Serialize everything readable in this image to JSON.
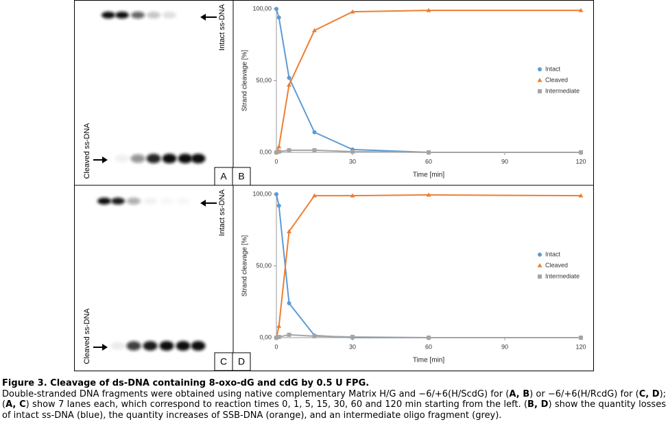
{
  "panels": [
    "A",
    "B",
    "C",
    "D"
  ],
  "gels": [
    {
      "intact_label": "Intact ss-DNA",
      "cleaved_label": "Cleaved ss-DNA"
    },
    {
      "intact_label": "Intact ss-DNA",
      "cleaved_label": "Cleaved ss-DNA"
    }
  ],
  "chart_data": [
    {
      "type": "line",
      "xlabel": "Time [min]",
      "ylabel": "Strand cleavage [%]",
      "x": [
        0,
        1,
        5,
        15,
        30,
        60,
        120
      ],
      "xlim": [
        0,
        120
      ],
      "xticks": [
        0,
        30,
        60,
        90,
        120
      ],
      "ylim": [
        0,
        100
      ],
      "yticks": [
        {
          "value": 0,
          "label": "0,00"
        },
        {
          "value": 50,
          "label": "50,00"
        },
        {
          "value": 100,
          "label": "100,00"
        }
      ],
      "legend": "right",
      "series": [
        {
          "name": "Intact",
          "color": "#5b9bd5",
          "marker": "circle",
          "values": [
            100,
            94,
            52,
            14,
            2,
            0,
            0
          ]
        },
        {
          "name": "Cleaved",
          "color": "#ed7d31",
          "marker": "triangle",
          "values": [
            0,
            4,
            47,
            85,
            98,
            99,
            99
          ]
        },
        {
          "name": "Intermediate",
          "color": "#a5a5a5",
          "marker": "square",
          "values": [
            0,
            0.5,
            1.5,
            1.5,
            0.5,
            0,
            0
          ]
        }
      ]
    },
    {
      "type": "line",
      "xlabel": "Time [min]",
      "ylabel": "Strand cleavage [%]",
      "x": [
        0,
        1,
        5,
        15,
        30,
        60,
        120
      ],
      "xlim": [
        0,
        120
      ],
      "xticks": [
        0,
        30,
        60,
        90,
        120
      ],
      "ylim": [
        0,
        100
      ],
      "yticks": [
        {
          "value": 0,
          "label": "0,00"
        },
        {
          "value": 50,
          "label": "50,00"
        },
        {
          "value": 100,
          "label": "100,00"
        }
      ],
      "legend": "right",
      "series": [
        {
          "name": "Intact",
          "color": "#5b9bd5",
          "marker": "circle",
          "values": [
            100,
            92,
            24,
            1.5,
            0,
            0,
            0
          ]
        },
        {
          "name": "Cleaved",
          "color": "#ed7d31",
          "marker": "triangle",
          "values": [
            0,
            8,
            74,
            99,
            99,
            99.5,
            99
          ]
        },
        {
          "name": "Intermediate",
          "color": "#a5a5a5",
          "marker": "square",
          "values": [
            0,
            0.5,
            2,
            1,
            0.5,
            0,
            0
          ]
        }
      ]
    }
  ],
  "caption": {
    "title": "Figure 3. Cleavage of ds-DNA containing 8-oxo-dG and cdG by 0.5 U FPG.",
    "runs": [
      "Double-stranded DNA fragments were obtained using native complementary Matrix H/G and −6/+6(H/ScdG) for (",
      "A, B",
      ") or −6/+6(H/RcdG) for (",
      "C, D",
      "); (",
      "A, C",
      ") show 7 lanes each, which correspond to reaction times 0, 1, 5, 15, 30, 60 and 120 min starting from the left. (",
      "B, D",
      ") show the quantity losses of intact ss-DNA (blue), the quantity increases of SSB-DNA (orange), and an intermediate oligo fragment (grey)."
    ]
  }
}
